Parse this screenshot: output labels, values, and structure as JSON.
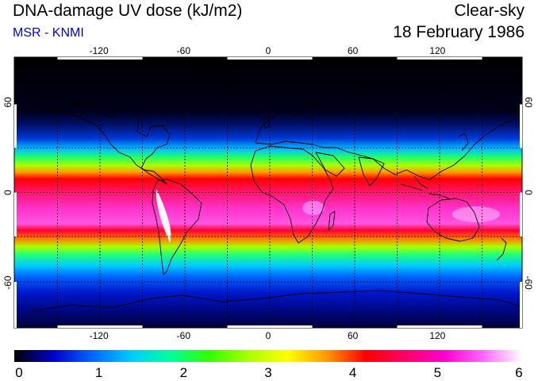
{
  "header": {
    "title": "DNA-damage UV dose (kJ/m2)",
    "credit": "MSR - KNMI",
    "condition": "Clear-sky",
    "date": "18 February 1986"
  },
  "map_axes": {
    "lon_ticks": [
      "-120",
      "-60",
      "0",
      "60",
      "120"
    ],
    "lat_ticks": [
      "60",
      "0",
      "-60"
    ],
    "lon_values": [
      -120,
      -60,
      0,
      60,
      120
    ],
    "lat_values": [
      60,
      0,
      -60
    ],
    "lon_range": [
      -180,
      180
    ],
    "lat_range": [
      -90,
      90
    ]
  },
  "colorbar": {
    "tick_labels": [
      "0",
      "1",
      "2",
      "3",
      "4",
      "5",
      "6"
    ],
    "range": [
      0,
      6
    ],
    "colors": [
      "#000000",
      "#0000cc",
      "#0066ff",
      "#00ccff",
      "#00ff99",
      "#33ff00",
      "#aaff00",
      "#ffff00",
      "#ff9900",
      "#ff0000",
      "#ff0066",
      "#ff00cc",
      "#ff66ff",
      "#ffffff"
    ]
  },
  "map_colors": {
    "background": "#000000",
    "coastline": "#000000",
    "grid": "#000000"
  }
}
